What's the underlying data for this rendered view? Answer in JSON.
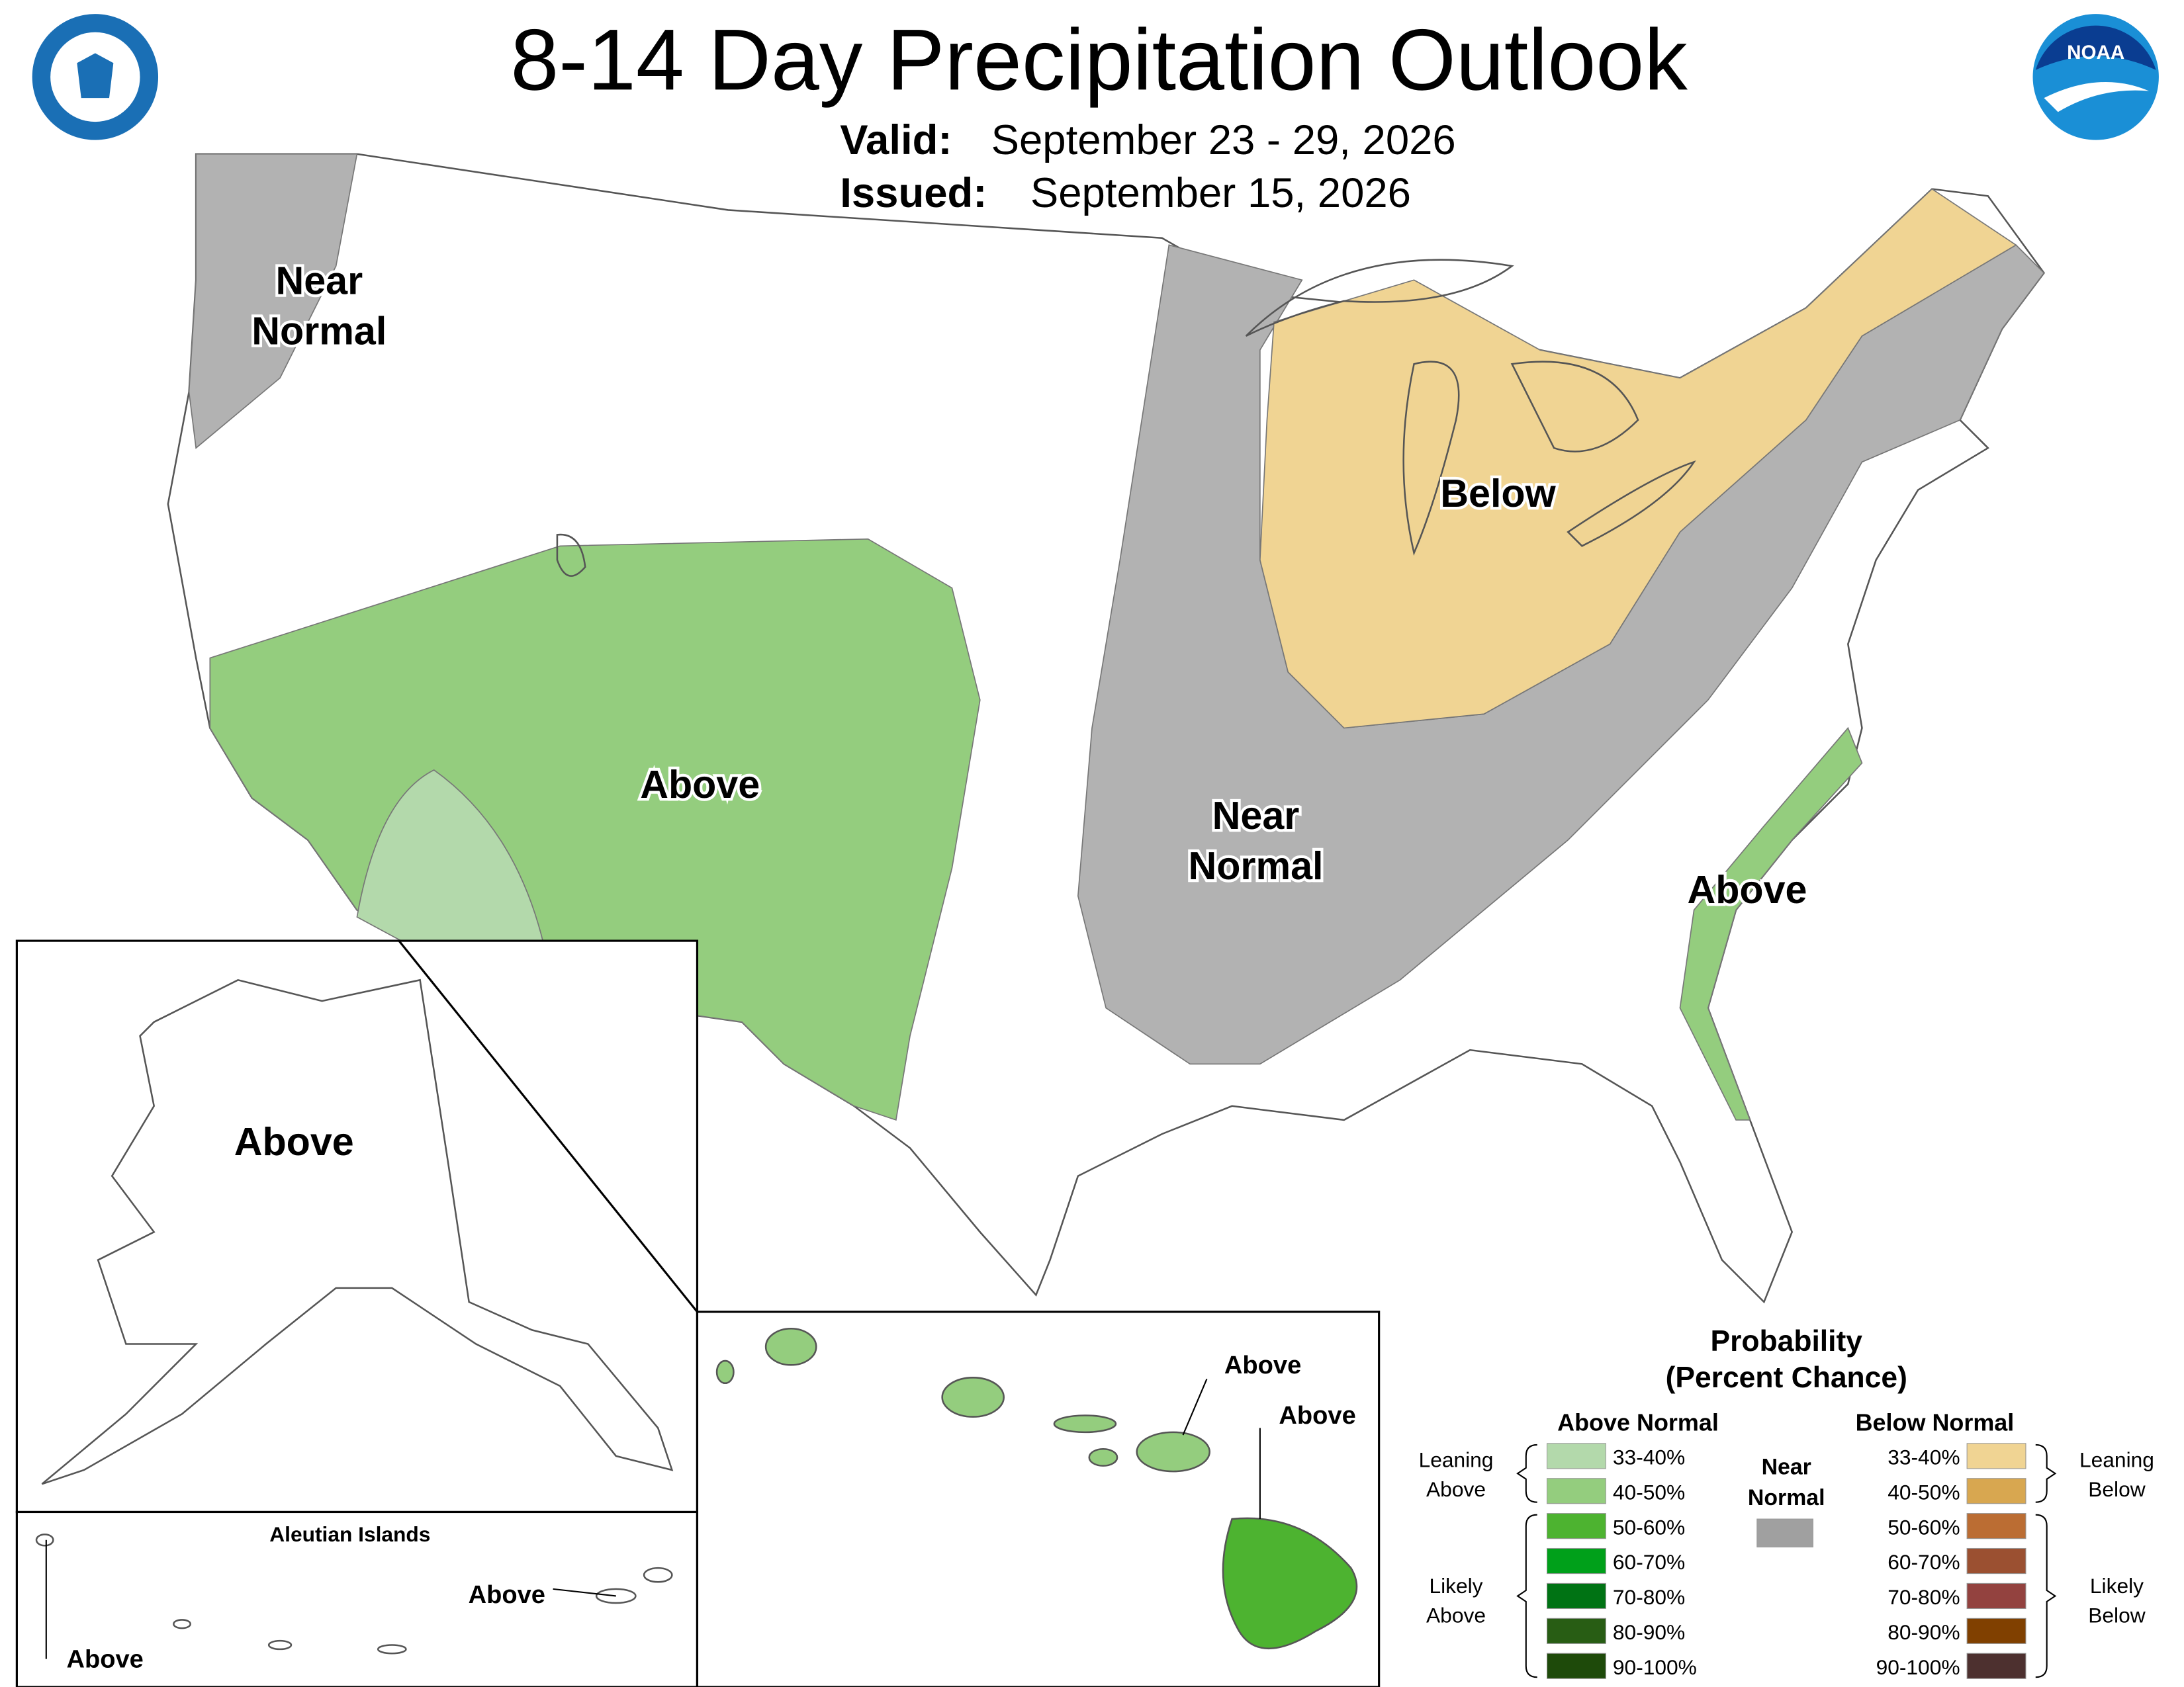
{
  "header": {
    "title": "8-14 Day Precipitation Outlook",
    "valid_label": "Valid:",
    "valid": "September 23 - 29, 2026",
    "issued_label": "Issued:",
    "issued": "September 15, 2026"
  },
  "logos": {
    "noaa": "NOAA"
  },
  "conus_labels": [
    {
      "lines": [
        "Near",
        "Normal"
      ]
    },
    {
      "lines": [
        "Below"
      ]
    },
    {
      "lines": [
        "Above"
      ]
    },
    {
      "lines": [
        "Near",
        "Normal"
      ]
    },
    {
      "lines": [
        "Above"
      ]
    }
  ],
  "alaska": {
    "label": "Above"
  },
  "aleutians": {
    "title": "Aleutian Islands",
    "labels": [
      "Above",
      "Above"
    ]
  },
  "hawaii": {
    "labels": [
      "Above",
      "Above"
    ]
  },
  "legend": {
    "title": [
      "Probability",
      "(Percent Chance)"
    ],
    "above_header": "Above Normal",
    "below_header": "Below Normal",
    "near": [
      "Near",
      "Normal"
    ],
    "near_color": "#a0a0a0",
    "leaning_above": [
      "Leaning",
      "Above"
    ],
    "likely_above": [
      "Likely",
      "Above"
    ],
    "leaning_below": [
      "Leaning",
      "Below"
    ],
    "likely_below": [
      "Likely",
      "Below"
    ],
    "above_bins": [
      {
        "label": "33-40%",
        "color": "#b3d9ab"
      },
      {
        "label": "40-50%",
        "color": "#94cd7e"
      },
      {
        "label": "50-60%",
        "color": "#4db330"
      },
      {
        "label": "60-70%",
        "color": "#00a01a"
      },
      {
        "label": "70-80%",
        "color": "#007314"
      },
      {
        "label": "80-90%",
        "color": "#285d14"
      },
      {
        "label": "90-100%",
        "color": "#1e4a0a"
      }
    ],
    "below_bins": [
      {
        "label": "33-40%",
        "color": "#f0d493"
      },
      {
        "label": "40-50%",
        "color": "#d8a750"
      },
      {
        "label": "50-60%",
        "color": "#bb6d33"
      },
      {
        "label": "60-70%",
        "color": "#9b5031"
      },
      {
        "label": "70-80%",
        "color": "#93423f"
      },
      {
        "label": "80-90%",
        "color": "#804000"
      },
      {
        "label": "90-100%",
        "color": "#4d302f"
      }
    ]
  }
}
